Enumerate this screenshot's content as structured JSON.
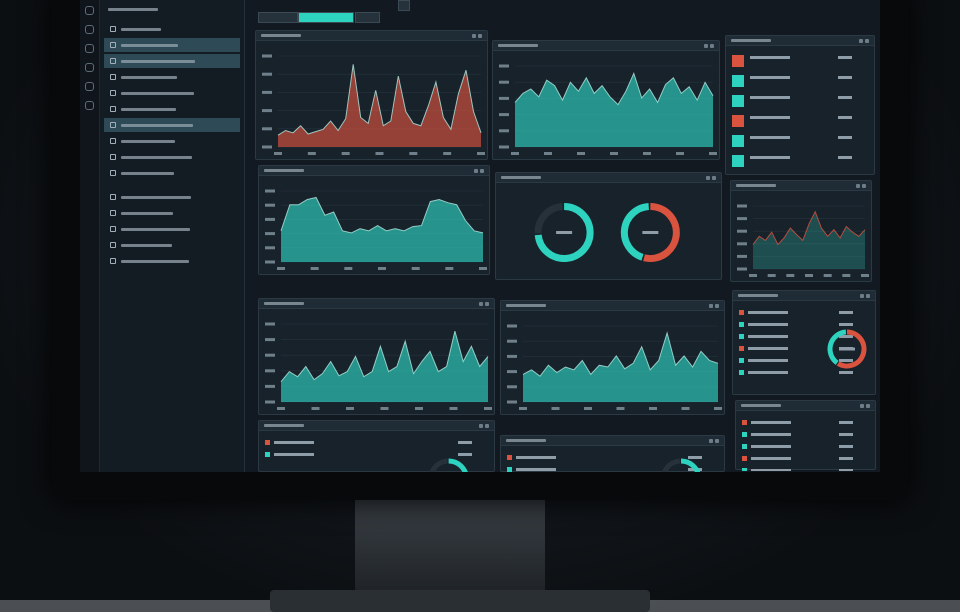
{
  "colors": {
    "accent_teal": "#2ed3c0",
    "accent_red": "#d9533f",
    "screen_bg": "#121920",
    "panel_bg": "#18222b"
  },
  "sidebar": {
    "items": [
      {
        "icon": "circle-icon",
        "active": false
      },
      {
        "icon": "play-icon",
        "active": true
      },
      {
        "icon": "grid-icon",
        "active": true
      },
      {
        "icon": "flag-icon",
        "active": false
      },
      {
        "icon": "grid-icon",
        "active": false
      },
      {
        "icon": "list-icon",
        "active": false
      },
      {
        "icon": "gear-icon",
        "active": true
      },
      {
        "icon": "list-icon",
        "active": false
      },
      {
        "icon": "grid-icon",
        "active": false
      },
      {
        "icon": "grid-icon",
        "active": false
      },
      {
        "icon": "box-icon",
        "active": false
      },
      {
        "icon": "check-icon",
        "active": false
      },
      {
        "icon": "check-icon",
        "active": false
      },
      {
        "icon": "check-icon",
        "active": false
      },
      {
        "icon": "grid-icon",
        "active": false
      }
    ]
  },
  "chart_data": [
    {
      "type": "area",
      "color": "#d9533f",
      "values": [
        10,
        14,
        12,
        18,
        11,
        13,
        15,
        22,
        14,
        24,
        70,
        25,
        20,
        48,
        18,
        22,
        60,
        30,
        20,
        18,
        35,
        55,
        25,
        15,
        45,
        65,
        30,
        12
      ]
    },
    {
      "type": "area",
      "color": "#2ed3c0",
      "values": [
        40,
        48,
        52,
        45,
        60,
        55,
        42,
        58,
        50,
        62,
        48,
        55,
        45,
        38,
        50,
        66,
        44,
        52,
        40,
        56,
        62,
        48,
        54,
        42,
        58,
        46
      ]
    },
    {
      "type": "area",
      "color": "#2ed3c0",
      "values": [
        30,
        55,
        55,
        60,
        62,
        45,
        48,
        30,
        28,
        32,
        30,
        35,
        30,
        32,
        30,
        34,
        35,
        58,
        60,
        57,
        55,
        40,
        30,
        28
      ]
    },
    {
      "type": "pie",
      "values": [
        75,
        25
      ],
      "colors": [
        "#2ed3c0",
        "#26313a"
      ]
    },
    {
      "type": "pie",
      "values": [
        55,
        45
      ],
      "colors": [
        "#d9533f",
        "#2ed3c0"
      ]
    },
    {
      "type": "line",
      "color": "#d9533f",
      "values": [
        30,
        40,
        35,
        45,
        30,
        38,
        50,
        42,
        35,
        55,
        70,
        50,
        40,
        48,
        38,
        52,
        45,
        40,
        48
      ]
    },
    {
      "type": "area",
      "color": "#2ed3c0",
      "values": [
        20,
        30,
        25,
        35,
        22,
        28,
        40,
        26,
        30,
        45,
        25,
        30,
        55,
        30,
        35,
        60,
        28,
        40,
        50,
        30,
        35,
        70,
        40,
        55,
        35,
        45
      ]
    },
    {
      "type": "area",
      "color": "#2ed3c0",
      "values": [
        30,
        35,
        28,
        40,
        32,
        38,
        35,
        45,
        30,
        40,
        38,
        50,
        36,
        42,
        60,
        35,
        45,
        75,
        40,
        50,
        38,
        55,
        45,
        42
      ]
    },
    {
      "type": "pie",
      "values": [
        60,
        40
      ],
      "colors": [
        "#d9533f",
        "#2ed3c0"
      ]
    }
  ]
}
